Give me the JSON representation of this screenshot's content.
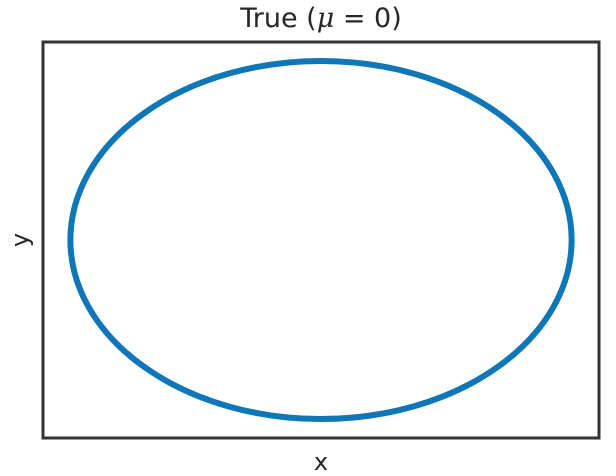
{
  "chart_data": {
    "type": "line",
    "title_prefix": "True (",
    "title_symbol": "μ",
    "title_suffix": " = 0)",
    "xlabel": "x",
    "ylabel": "y",
    "grid": false,
    "ticks_visible": false,
    "series": [
      {
        "shape": "ellipse",
        "color": "#0f76b8",
        "center": [
          0,
          0
        ],
        "semi_axes": [
          1.19,
          0.85
        ]
      }
    ],
    "xlim": [
      -1.32,
      1.32
    ],
    "ylim": [
      -0.94,
      0.94
    ]
  }
}
